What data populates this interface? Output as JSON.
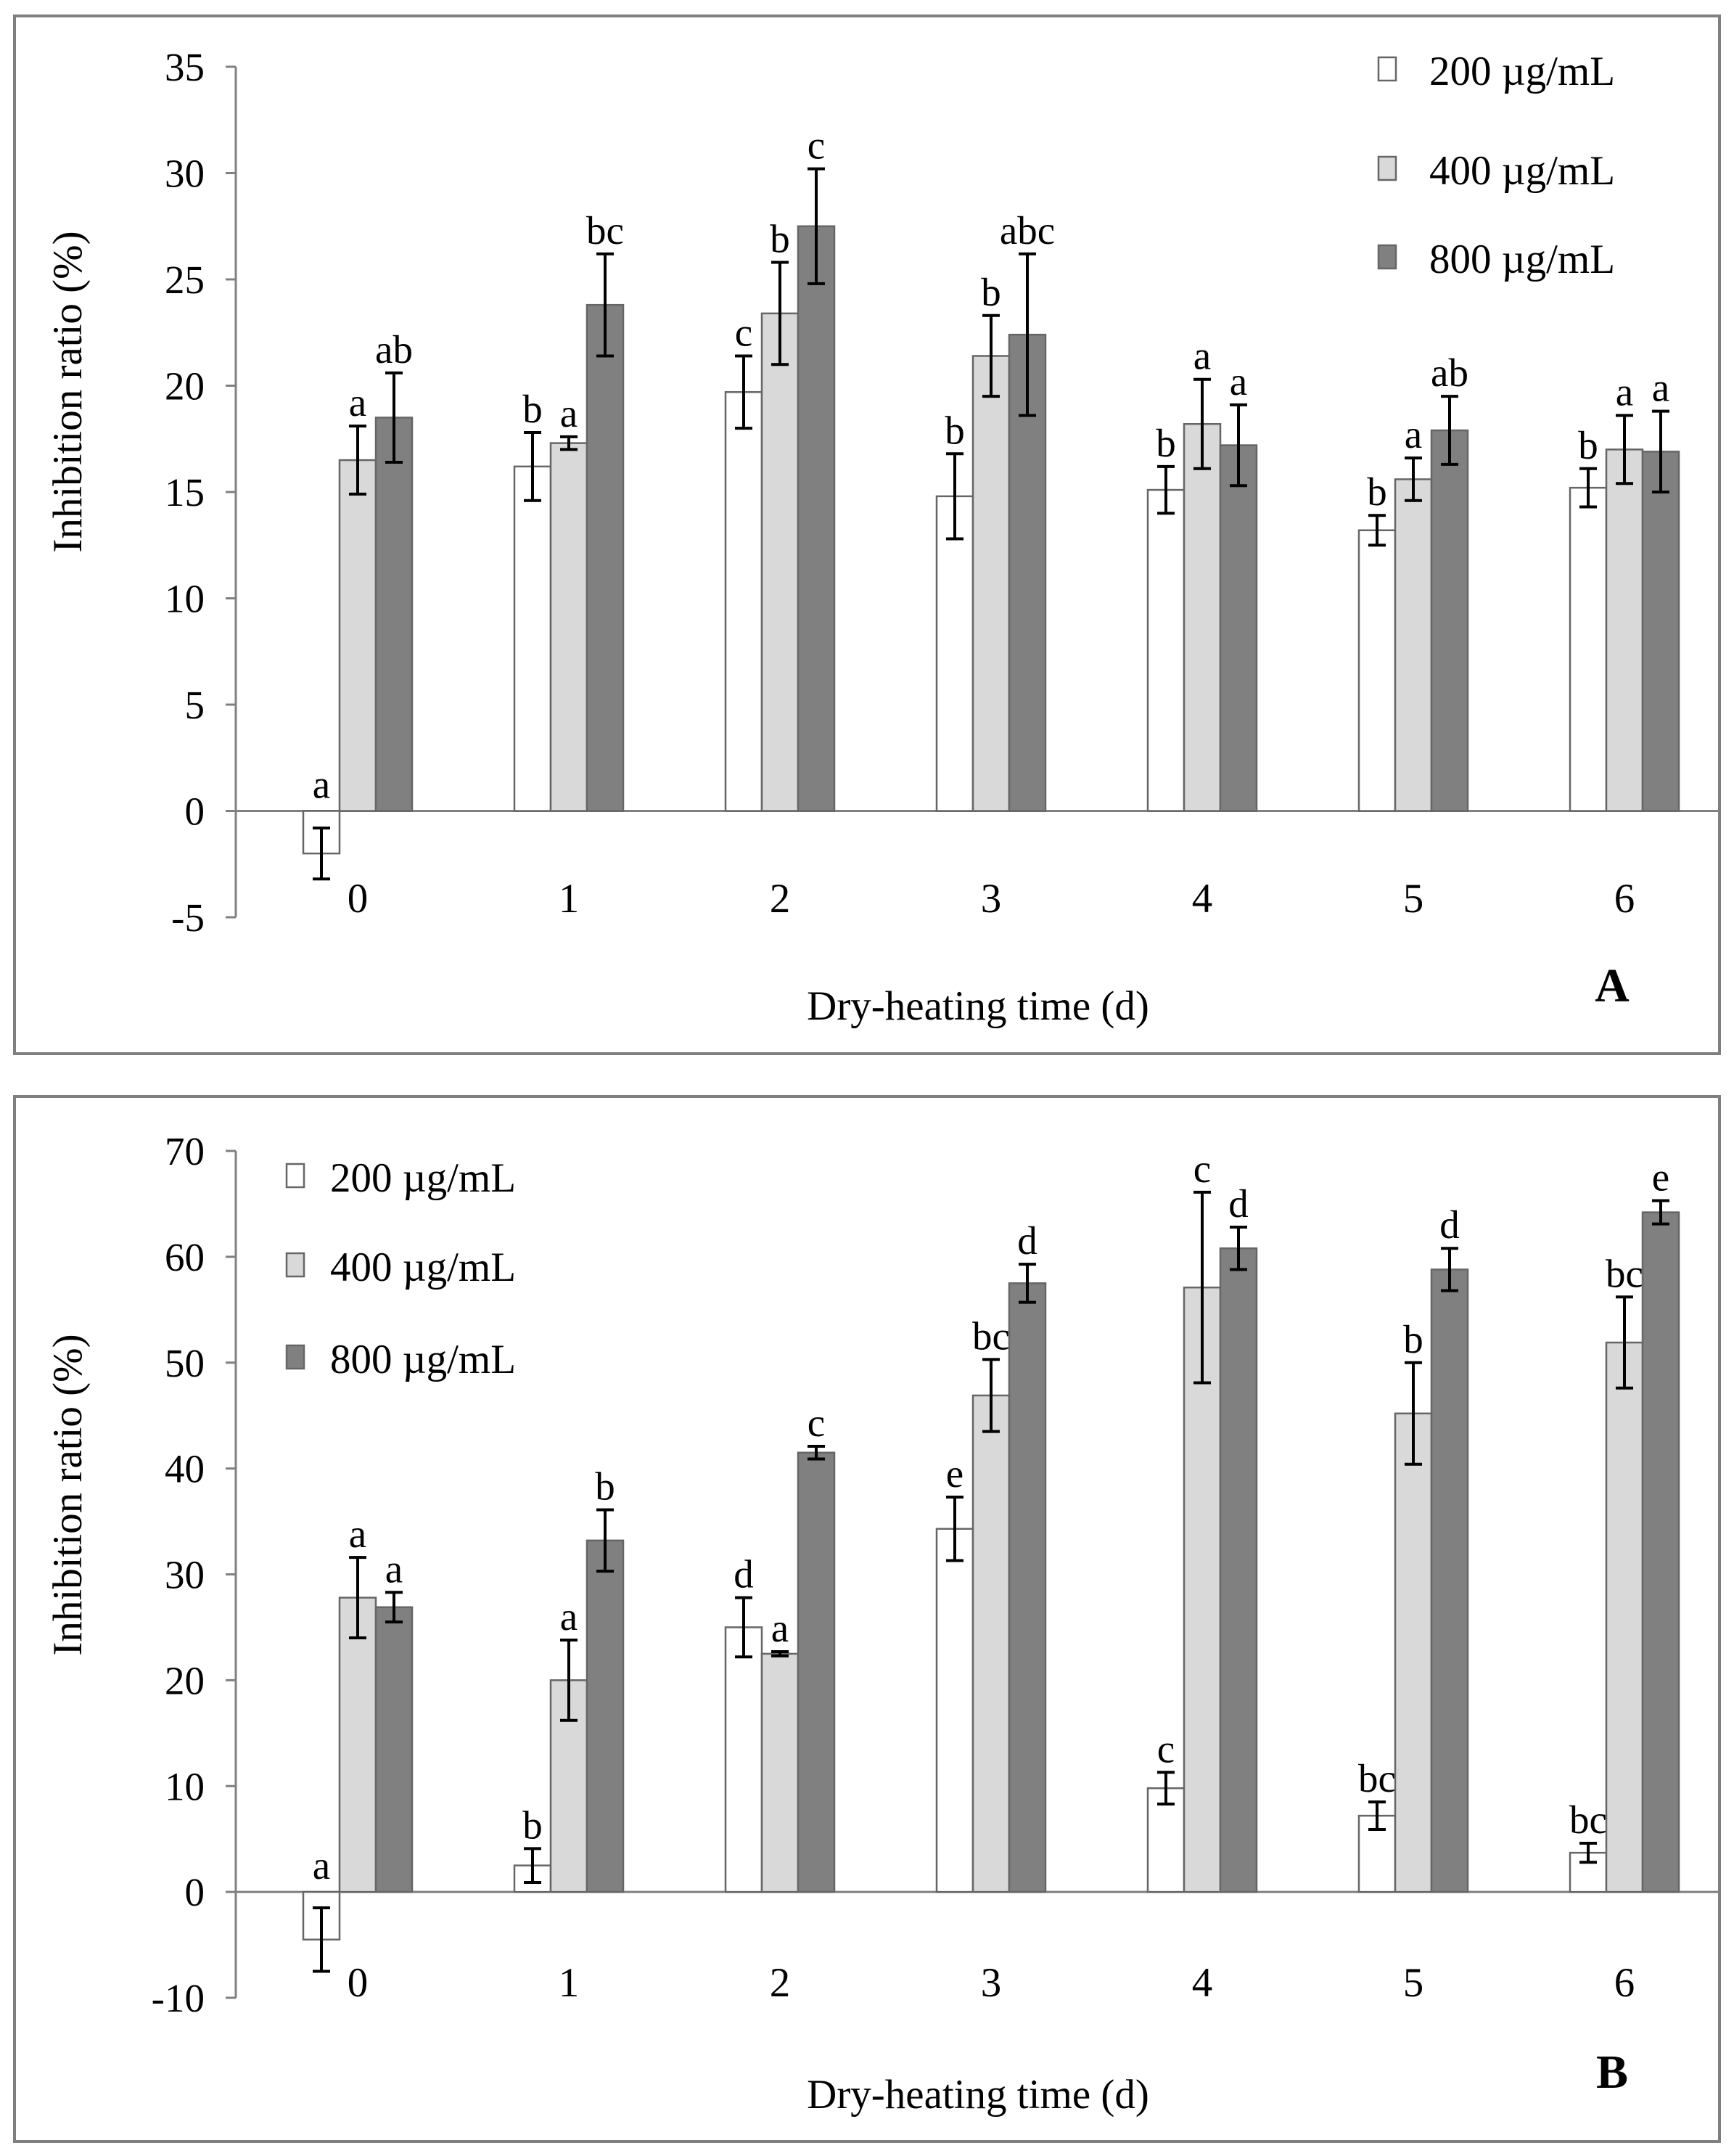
{
  "chart_data": [
    {
      "panel_label": "A",
      "type": "bar",
      "categories": [
        "0",
        "1",
        "2",
        "3",
        "4",
        "5",
        "6"
      ],
      "series": [
        {
          "name": "200 µg/mL",
          "values": [
            -2.0,
            16.2,
            19.7,
            14.8,
            15.1,
            13.2,
            15.2
          ],
          "errors": [
            1.2,
            1.6,
            1.7,
            2.0,
            1.1,
            0.7,
            0.9
          ],
          "letters": [
            "a",
            "b",
            "c",
            "b",
            "b",
            "b",
            "b"
          ],
          "color": "#ffffff"
        },
        {
          "name": "400 µg/mL",
          "values": [
            16.5,
            17.3,
            23.4,
            21.4,
            18.2,
            15.6,
            17.0
          ],
          "errors": [
            1.6,
            0.3,
            2.4,
            1.9,
            2.1,
            1.0,
            1.6
          ],
          "letters": [
            "a",
            "a",
            "b",
            "b",
            "a",
            "a",
            "a"
          ],
          "color": "#d9d9d9"
        },
        {
          "name": "800 µg/mL",
          "values": [
            18.5,
            23.8,
            27.5,
            22.4,
            17.2,
            17.9,
            16.9
          ],
          "errors": [
            2.1,
            2.4,
            2.7,
            3.8,
            1.9,
            1.6,
            1.9
          ],
          "letters": [
            "ab",
            "bc",
            "c",
            "abc",
            "a",
            "ab",
            "a"
          ],
          "color": "#808080"
        }
      ],
      "title": "",
      "xlabel": "Dry-heating  time (d)",
      "ylabel": "Inhibition ratio (%)",
      "ylim": [
        -5,
        35
      ],
      "yticks": [
        "-5",
        "0",
        "5",
        "10",
        "15",
        "20",
        "25",
        "30",
        "35"
      ],
      "legend_position": "top-right"
    },
    {
      "panel_label": "B",
      "type": "bar",
      "categories": [
        "0",
        "1",
        "2",
        "3",
        "4",
        "5",
        "6"
      ],
      "series": [
        {
          "name": "200 µg/mL",
          "values": [
            -4.5,
            2.5,
            25.0,
            34.3,
            9.8,
            7.2,
            3.7
          ],
          "errors": [
            3.0,
            1.6,
            2.8,
            3.0,
            1.5,
            1.3,
            0.9
          ],
          "letters": [
            "a",
            "b",
            "d",
            "e",
            "c",
            "bc",
            "bc"
          ],
          "color": "#ffffff"
        },
        {
          "name": "400 µg/mL",
          "values": [
            27.8,
            20.0,
            22.5,
            46.9,
            57.1,
            45.2,
            51.9
          ],
          "errors": [
            3.8,
            3.8,
            0.2,
            3.4,
            9.0,
            4.8,
            4.3
          ],
          "letters": [
            "a",
            "a",
            "a",
            "bc",
            "c",
            "b",
            "bc"
          ],
          "color": "#d9d9d9"
        },
        {
          "name": "800 µg/mL",
          "values": [
            26.9,
            33.2,
            41.5,
            57.5,
            60.8,
            58.8,
            64.2
          ],
          "errors": [
            1.4,
            2.9,
            0.6,
            1.8,
            2.0,
            2.0,
            1.1
          ],
          "letters": [
            "a",
            "b",
            "c",
            "d",
            "d",
            "d",
            "e"
          ],
          "color": "#808080"
        }
      ],
      "title": "",
      "xlabel": "Dry-heating time (d)",
      "ylabel": "Inhibition ratio (%)",
      "ylim": [
        -10,
        70
      ],
      "yticks": [
        "-10",
        "0",
        "10",
        "20",
        "30",
        "40",
        "50",
        "60",
        "70"
      ],
      "legend_position": "top-left"
    }
  ]
}
